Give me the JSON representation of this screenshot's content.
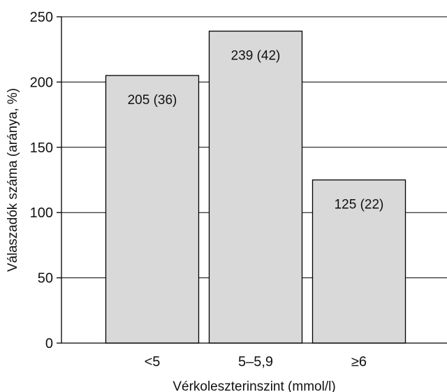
{
  "chart_data": {
    "type": "bar",
    "categories": [
      "<5",
      "5–5,9",
      "≥6"
    ],
    "values": [
      205,
      239,
      125
    ],
    "data_labels": [
      "205 (36)",
      "239 (42)",
      "125 (22)"
    ],
    "xlabel": "Vérkoleszterinszint (mmol/l)",
    "ylabel": "Válaszadók száma (aránya, %)",
    "ylim": [
      0,
      250
    ],
    "yticks": [
      0,
      50,
      100,
      150,
      200,
      250
    ],
    "ytick_labels": [
      "0",
      "50",
      "100",
      "150",
      "200",
      "250"
    ],
    "grid": true,
    "bar_color": "#d9d9d9",
    "bar_edge_color": "#000000",
    "legend": "none"
  }
}
